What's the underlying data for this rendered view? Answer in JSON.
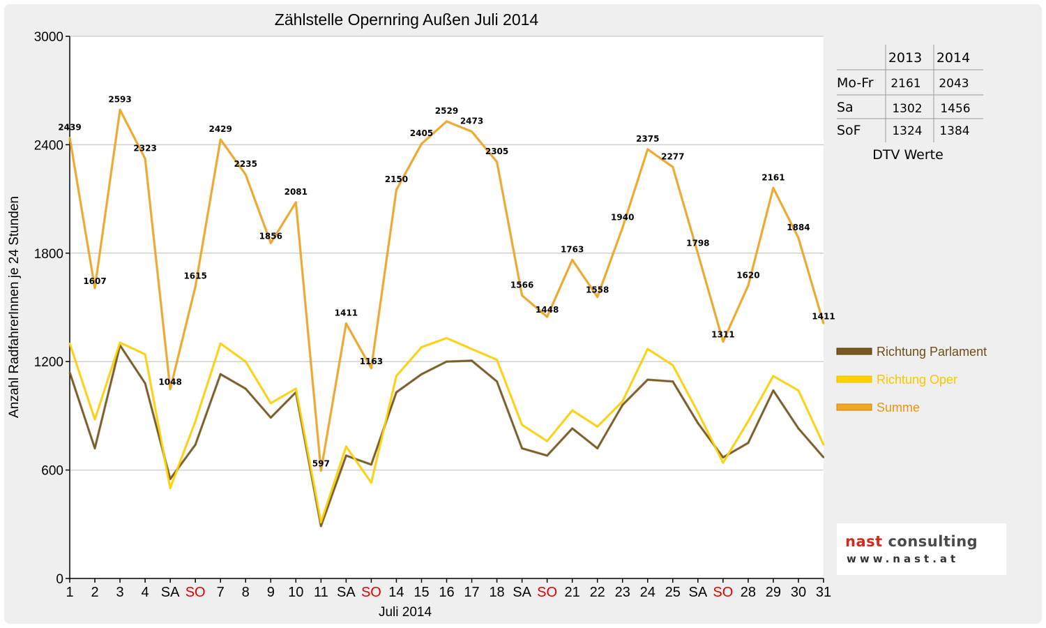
{
  "chart_data": {
    "type": "line",
    "title": "Zählstelle Opernring Außen Juli 2014",
    "xlabel": "Juli 2014",
    "ylabel": "Anzahl RadfahrerInnen je 24 Stunden",
    "ylim": [
      0,
      3000
    ],
    "yticks": [
      0,
      600,
      1200,
      1800,
      2400,
      3000
    ],
    "grid": true,
    "legend_position": "right",
    "categories": [
      "1",
      "2",
      "3",
      "4",
      "SA",
      "SO",
      "7",
      "8",
      "9",
      "10",
      "11",
      "SA",
      "SO",
      "14",
      "15",
      "16",
      "17",
      "18",
      "SA",
      "SO",
      "21",
      "22",
      "23",
      "24",
      "25",
      "SA",
      "SO",
      "28",
      "29",
      "30",
      "31"
    ],
    "highlight_category_color": "#e00000",
    "highlight_categories": [
      "SO"
    ],
    "series": [
      {
        "name": "Richtung Parlament",
        "color": "#7a5a1e",
        "values": [
          1140,
          720,
          1290,
          1080,
          550,
          740,
          1130,
          1050,
          890,
          1030,
          290,
          680,
          630,
          1030,
          1130,
          1200,
          1205,
          1090,
          720,
          680,
          830,
          720,
          960,
          1100,
          1090,
          860,
          670,
          750,
          1040,
          830,
          670
        ]
      },
      {
        "name": "Richtung Oper",
        "color": "#ffd200",
        "values": [
          1300,
          880,
          1305,
          1240,
          500,
          870,
          1300,
          1200,
          970,
          1050,
          310,
          730,
          530,
          1120,
          1280,
          1330,
          1270,
          1210,
          850,
          760,
          930,
          840,
          980,
          1270,
          1180,
          920,
          640,
          870,
          1120,
          1040,
          740
        ]
      },
      {
        "name": "Summe",
        "color": "#f2a81b",
        "values": [
          2439,
          1607,
          2593,
          2323,
          1048,
          1615,
          2429,
          2235,
          1856,
          2081,
          597,
          1411,
          1163,
          2150,
          2405,
          2529,
          2473,
          2305,
          1566,
          1448,
          1763,
          1558,
          1940,
          2375,
          2277,
          1798,
          1311,
          1620,
          2161,
          1884,
          1411
        ],
        "data_labels": [
          "2439",
          "1607",
          "2593",
          "2323",
          "1048",
          "1615",
          "2429",
          "2235",
          "1856",
          "2081",
          "597",
          "1411",
          "1163",
          "2150",
          "2405",
          "2529",
          "2473",
          "2305",
          "1566",
          "1448",
          "1763",
          "1558",
          "1940",
          "2375",
          "2277",
          "1798",
          "1311",
          "1620",
          "2161",
          "1884",
          "1411"
        ]
      }
    ]
  },
  "dtv_table": {
    "caption": "DTV Werte",
    "headers": [
      "",
      "2013",
      "2014"
    ],
    "rows": [
      {
        "label": "Mo-Fr",
        "v2013": "2161",
        "v2014": "2043"
      },
      {
        "label": "Sa",
        "v2013": "1302",
        "v2014": "1456"
      },
      {
        "label": "SoF",
        "v2013": "1324",
        "v2014": "1384"
      }
    ]
  },
  "logo": {
    "name_part1": "nast",
    "name_part2": "consulting",
    "url": "www.nast.at"
  }
}
